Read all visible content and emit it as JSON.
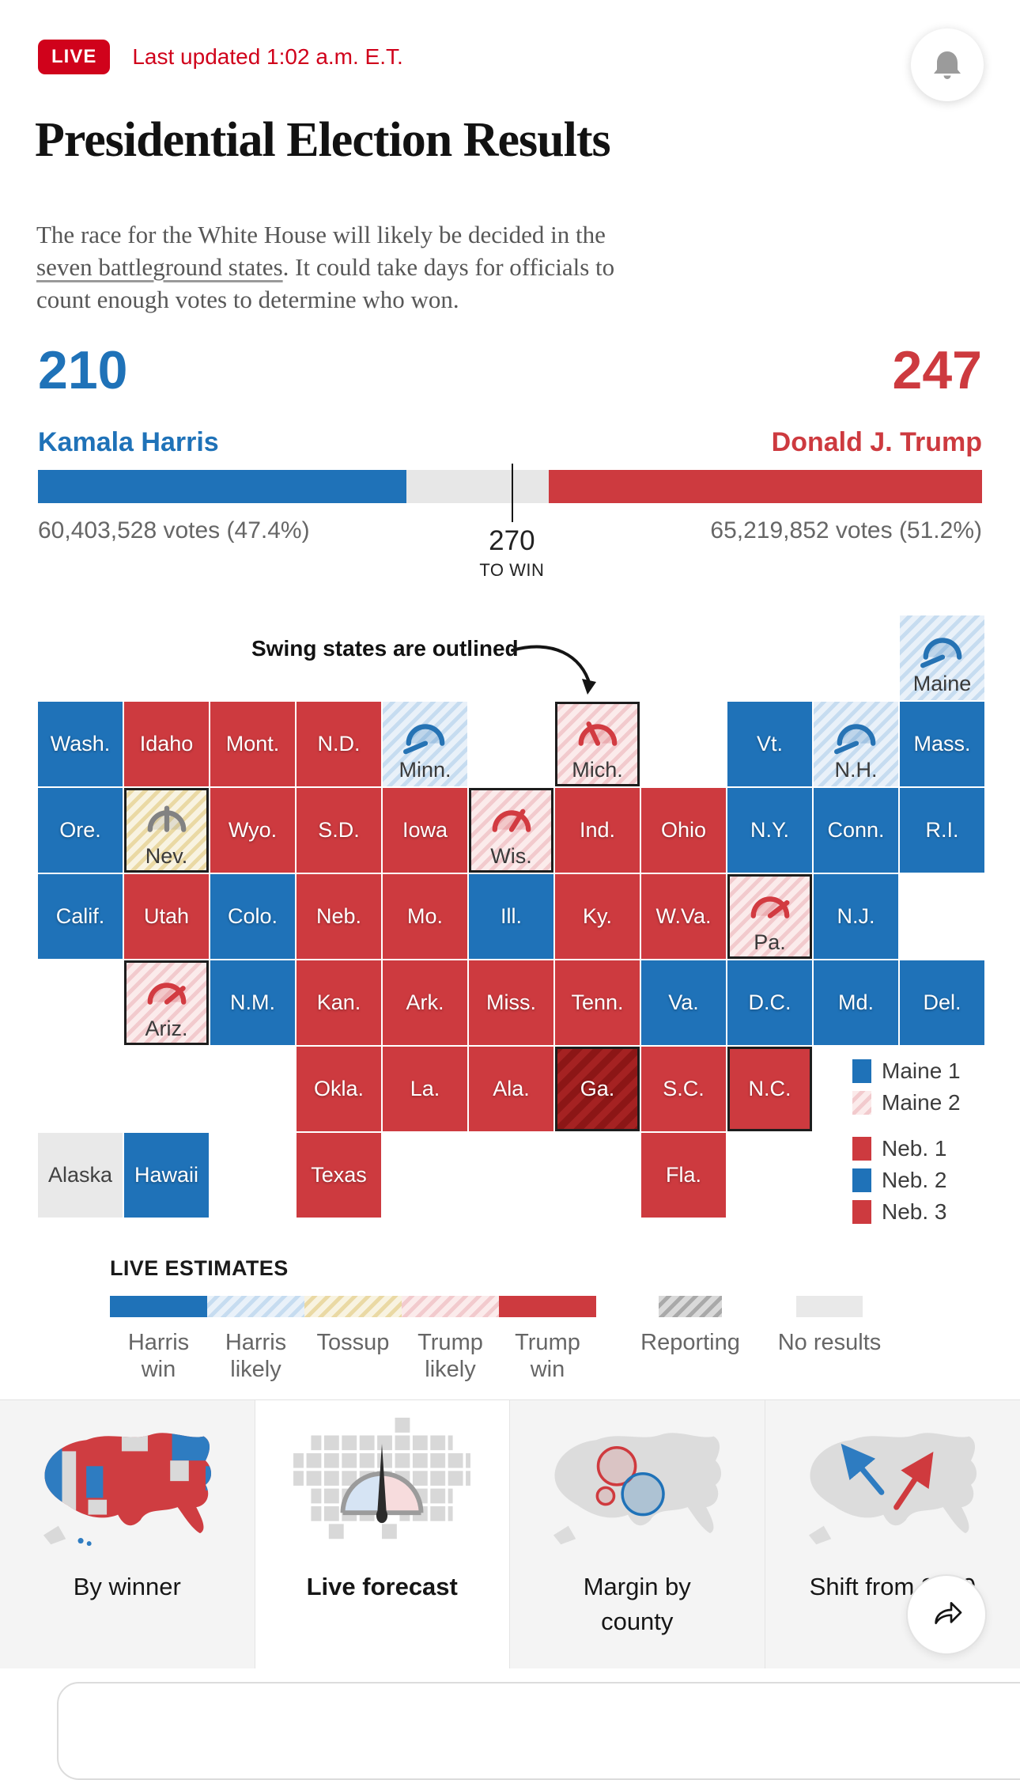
{
  "header": {
    "live_badge": "LIVE",
    "last_updated": "Last updated 1:02 a.m. E.T.",
    "live_red": "#d0021b",
    "title": "Presidential Election Results",
    "para_line1": "The race for the White House will likely be decided in the\n",
    "para_link": "seven battleground states",
    "para_rest": ". It could take days for officials to\ncount enough votes to determine who won."
  },
  "scoreboard": {
    "harris": {
      "evotes": "210",
      "name": "Kamala Harris",
      "votes": "60,403,528 votes (47.4%)",
      "bar_pct": 39.0
    },
    "trump": {
      "evotes": "247",
      "name": "Donald J. Trump",
      "votes": "65,219,852 votes (51.2%)",
      "bar_pct": 45.9
    },
    "marker": {
      "value": "270",
      "label": "TO WIN",
      "pct": 50.2
    },
    "colors": {
      "harris": "#1f72b8",
      "trump": "#cd3a3f",
      "undecided": "#e7e7e7"
    }
  },
  "map": {
    "annotation": "Swing states are outlined",
    "columns": 11,
    "states": [
      {
        "label": "Maine",
        "row": 0,
        "col": 10,
        "category": "harris-likely",
        "outlined": false,
        "gauge": {
          "color": "blue",
          "angle": 203
        }
      },
      {
        "label": "Wash.",
        "row": 1,
        "col": 0,
        "category": "harris-win",
        "outlined": false
      },
      {
        "label": "Idaho",
        "row": 1,
        "col": 1,
        "category": "trump-win",
        "outlined": false
      },
      {
        "label": "Mont.",
        "row": 1,
        "col": 2,
        "category": "trump-win",
        "outlined": false
      },
      {
        "label": "N.D.",
        "row": 1,
        "col": 3,
        "category": "trump-win",
        "outlined": false
      },
      {
        "label": "Minn.",
        "row": 1,
        "col": 4,
        "category": "harris-likely",
        "outlined": false,
        "gauge": {
          "color": "blue",
          "angle": 203
        }
      },
      {
        "label": "Mich.",
        "row": 1,
        "col": 6,
        "category": "trump-likely",
        "outlined": true,
        "gauge": {
          "color": "red",
          "angle": 115
        }
      },
      {
        "label": "Vt.",
        "row": 1,
        "col": 8,
        "category": "harris-win",
        "outlined": false
      },
      {
        "label": "N.H.",
        "row": 1,
        "col": 9,
        "category": "harris-likely",
        "outlined": false,
        "gauge": {
          "color": "blue",
          "angle": 203
        }
      },
      {
        "label": "Mass.",
        "row": 1,
        "col": 10,
        "category": "harris-win",
        "outlined": false
      },
      {
        "label": "Ore.",
        "row": 2,
        "col": 0,
        "category": "harris-win",
        "outlined": false
      },
      {
        "label": "Nev.",
        "row": 2,
        "col": 1,
        "category": "tossup",
        "outlined": true,
        "gauge": {
          "color": "gray",
          "angle": 90
        }
      },
      {
        "label": "Wyo.",
        "row": 2,
        "col": 2,
        "category": "trump-win",
        "outlined": false
      },
      {
        "label": "S.D.",
        "row": 2,
        "col": 3,
        "category": "trump-win",
        "outlined": false
      },
      {
        "label": "Iowa",
        "row": 2,
        "col": 4,
        "category": "trump-win",
        "outlined": false
      },
      {
        "label": "Wis.",
        "row": 2,
        "col": 5,
        "category": "trump-likely",
        "outlined": true,
        "gauge": {
          "color": "red",
          "angle": 58
        }
      },
      {
        "label": "Ind.",
        "row": 2,
        "col": 6,
        "category": "trump-win",
        "outlined": false
      },
      {
        "label": "Ohio",
        "row": 2,
        "col": 7,
        "category": "trump-win",
        "outlined": false
      },
      {
        "label": "N.Y.",
        "row": 2,
        "col": 8,
        "category": "harris-win",
        "outlined": false
      },
      {
        "label": "Conn.",
        "row": 2,
        "col": 9,
        "category": "harris-win",
        "outlined": false
      },
      {
        "label": "R.I.",
        "row": 2,
        "col": 10,
        "category": "harris-win",
        "outlined": false
      },
      {
        "label": "Calif.",
        "row": 3,
        "col": 0,
        "category": "harris-win",
        "outlined": false
      },
      {
        "label": "Utah",
        "row": 3,
        "col": 1,
        "category": "trump-win",
        "outlined": false
      },
      {
        "label": "Colo.",
        "row": 3,
        "col": 2,
        "category": "harris-win",
        "outlined": false
      },
      {
        "label": "Neb.",
        "row": 3,
        "col": 3,
        "category": "trump-win",
        "outlined": false
      },
      {
        "label": "Mo.",
        "row": 3,
        "col": 4,
        "category": "trump-win",
        "outlined": false
      },
      {
        "label": "Ill.",
        "row": 3,
        "col": 5,
        "category": "harris-win",
        "outlined": false
      },
      {
        "label": "Ky.",
        "row": 3,
        "col": 6,
        "category": "trump-win",
        "outlined": false
      },
      {
        "label": "W.Va.",
        "row": 3,
        "col": 7,
        "category": "trump-win",
        "outlined": false
      },
      {
        "label": "Pa.",
        "row": 3,
        "col": 8,
        "category": "trump-likely",
        "outlined": true,
        "gauge": {
          "color": "red",
          "angle": 38
        }
      },
      {
        "label": "N.J.",
        "row": 3,
        "col": 9,
        "category": "harris-win",
        "outlined": false
      },
      {
        "label": "Ariz.",
        "row": 4,
        "col": 1,
        "category": "trump-likely",
        "outlined": true,
        "gauge": {
          "color": "red",
          "angle": 40
        }
      },
      {
        "label": "N.M.",
        "row": 4,
        "col": 2,
        "category": "harris-win",
        "outlined": false
      },
      {
        "label": "Kan.",
        "row": 4,
        "col": 3,
        "category": "trump-win",
        "outlined": false
      },
      {
        "label": "Ark.",
        "row": 4,
        "col": 4,
        "category": "trump-win",
        "outlined": false
      },
      {
        "label": "Miss.",
        "row": 4,
        "col": 5,
        "category": "trump-win",
        "outlined": false
      },
      {
        "label": "Tenn.",
        "row": 4,
        "col": 6,
        "category": "trump-win",
        "outlined": false
      },
      {
        "label": "Va.",
        "row": 4,
        "col": 7,
        "category": "harris-win",
        "outlined": false
      },
      {
        "label": "D.C.",
        "row": 4,
        "col": 8,
        "category": "harris-win",
        "outlined": false
      },
      {
        "label": "Md.",
        "row": 4,
        "col": 9,
        "category": "harris-win",
        "outlined": false
      },
      {
        "label": "Del.",
        "row": 4,
        "col": 10,
        "category": "harris-win",
        "outlined": false
      },
      {
        "label": "Okla.",
        "row": 5,
        "col": 3,
        "category": "trump-win",
        "outlined": false
      },
      {
        "label": "La.",
        "row": 5,
        "col": 4,
        "category": "trump-win",
        "outlined": false
      },
      {
        "label": "Ala.",
        "row": 5,
        "col": 5,
        "category": "trump-win",
        "outlined": false
      },
      {
        "label": "Ga.",
        "row": 5,
        "col": 6,
        "category": "trump-reporting",
        "outlined": true
      },
      {
        "label": "S.C.",
        "row": 5,
        "col": 7,
        "category": "trump-win",
        "outlined": false
      },
      {
        "label": "N.C.",
        "row": 5,
        "col": 8,
        "category": "trump-win",
        "outlined": true
      },
      {
        "label": "Alaska",
        "row": 6,
        "col": 0,
        "category": "no-results",
        "outlined": false
      },
      {
        "label": "Hawaii",
        "row": 6,
        "col": 1,
        "category": "harris-win",
        "outlined": false
      },
      {
        "label": "Texas",
        "row": 6,
        "col": 3,
        "category": "trump-win",
        "outlined": false
      },
      {
        "label": "Fla.",
        "row": 6,
        "col": 7,
        "category": "trump-win",
        "outlined": false
      }
    ],
    "legend_maine": [
      {
        "label": "Maine 1",
        "category": "harris-win"
      },
      {
        "label": "Maine 2",
        "category": "trump-likely"
      }
    ],
    "legend_neb": [
      {
        "label": "Neb. 1",
        "category": "trump-win"
      },
      {
        "label": "Neb. 2",
        "category": "harris-win"
      },
      {
        "label": "Neb. 3",
        "category": "trump-win"
      }
    ]
  },
  "estimates": {
    "title": "LIVE ESTIMATES",
    "items": [
      {
        "label": "Harris\nwin",
        "category": "harris-win"
      },
      {
        "label": "Harris\nlikely",
        "category": "harris-likely"
      },
      {
        "label": "Tossup",
        "category": "tossup"
      },
      {
        "label": "Trump\nlikely",
        "category": "trump-likely"
      },
      {
        "label": "Trump\nwin",
        "category": "trump-win"
      },
      {
        "label": "Reporting",
        "category": "reporting"
      },
      {
        "label": "No results",
        "category": "no-results"
      }
    ]
  },
  "tabs": [
    {
      "label": "By winner",
      "selected": false
    },
    {
      "label": "Live forecast",
      "selected": true
    },
    {
      "label": "Margin by county",
      "selected": false
    },
    {
      "label": "Shift from 2020",
      "selected": false
    }
  ]
}
